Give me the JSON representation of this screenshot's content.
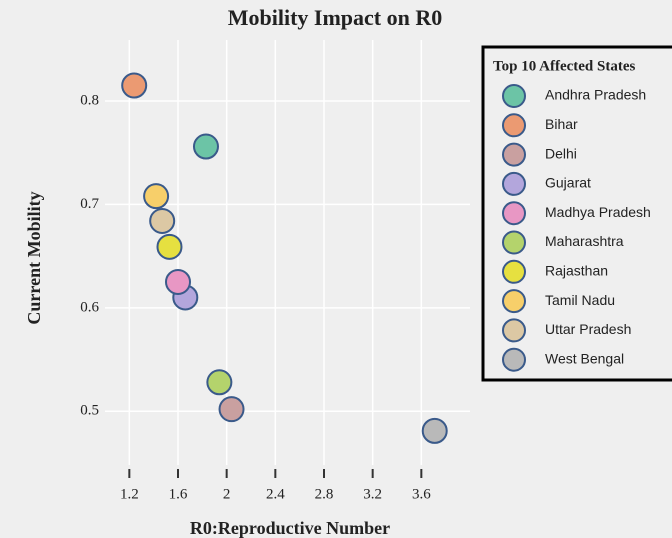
{
  "chart_data": {
    "type": "scatter",
    "title": "Mobility Impact on R0",
    "x_label": "R0:Reproductive Number",
    "y_label": "Current Mobility",
    "legend_title": "Top 10 Affected States",
    "legend_position": "right",
    "grid": true,
    "xlim": [
      1.0,
      4.0
    ],
    "ylim": [
      0.448,
      0.859
    ],
    "xticks": [
      1.2,
      1.6,
      2,
      2.4,
      2.8,
      3.2,
      3.6
    ],
    "yticks": [
      0.5,
      0.6,
      0.7,
      0.8
    ],
    "series": [
      {
        "name": "Andhra Pradesh",
        "color": "#6cc4a6",
        "x": [
          1.83
        ],
        "values": [
          0.756
        ]
      },
      {
        "name": "Bihar",
        "color": "#eb9a72",
        "x": [
          1.24
        ],
        "values": [
          0.815
        ]
      },
      {
        "name": "Delhi",
        "color": "#c9a0a0",
        "x": [
          2.04
        ],
        "values": [
          0.502
        ]
      },
      {
        "name": "Gujarat",
        "color": "#b3a6dc",
        "x": [
          1.66
        ],
        "values": [
          0.61
        ]
      },
      {
        "name": "Madhya Pradesh",
        "color": "#e897c4",
        "x": [
          1.6
        ],
        "values": [
          0.625
        ]
      },
      {
        "name": "Maharashtra",
        "color": "#b4d36c",
        "x": [
          1.94
        ],
        "values": [
          0.528
        ]
      },
      {
        "name": "Rajasthan",
        "color": "#e6e040",
        "x": [
          1.53
        ],
        "values": [
          0.659
        ]
      },
      {
        "name": "Tamil Nadu",
        "color": "#f7cf6a",
        "x": [
          1.42
        ],
        "values": [
          0.708
        ]
      },
      {
        "name": "Uttar Pradesh",
        "color": "#dcc8a4",
        "x": [
          1.47
        ],
        "values": [
          0.684
        ]
      },
      {
        "name": "West Bengal",
        "color": "#b9b9b9",
        "x": [
          3.71
        ],
        "values": [
          0.481
        ]
      }
    ]
  }
}
